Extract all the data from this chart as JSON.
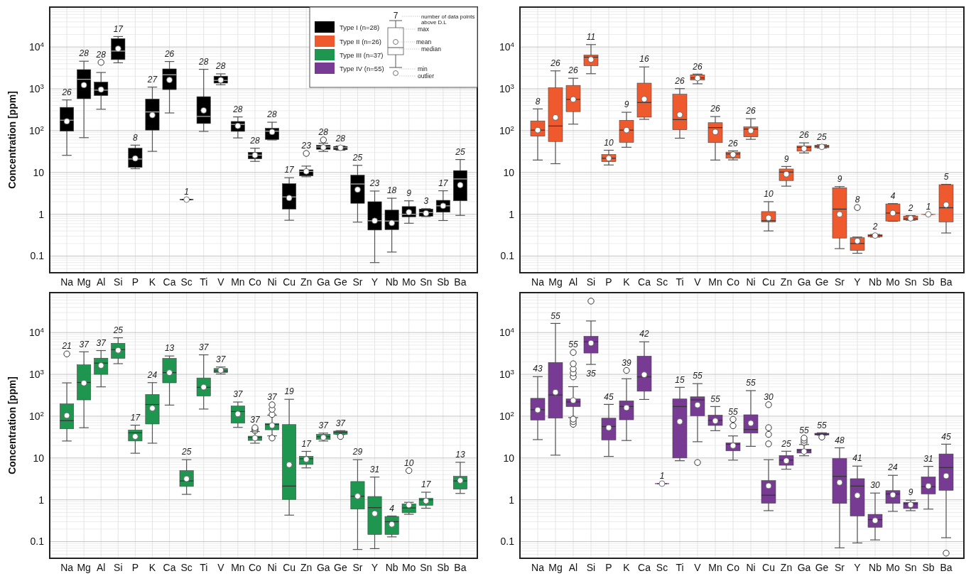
{
  "chart_data": [
    {
      "type": "box",
      "categories": [
        "Na",
        "Mg",
        "Al",
        "Si",
        "P",
        "K",
        "Ca",
        "Sc",
        "Ti",
        "V",
        "Mn",
        "Co",
        "Ni",
        "Cu",
        "Zn",
        "Ga",
        "Ge",
        "Sr",
        "Y",
        "Nb",
        "Mo",
        "Sn",
        "Sb",
        "Ba"
      ],
      "ylabel": "Concentration [ppm]",
      "log": true,
      "ylim": [
        0.04,
        90000
      ],
      "yticks": [
        {
          "value": 0.05,
          "label": null
        },
        {
          "value": 0.06,
          "label": null
        },
        {
          "value": 0.07,
          "label": null
        },
        {
          "value": 0.08,
          "label": null
        },
        {
          "value": 0.09,
          "label": null
        },
        0.1,
        {
          "value": 0.2,
          "label": null
        },
        {
          "value": 0.3,
          "label": null
        },
        {
          "value": 0.4,
          "label": null
        },
        {
          "value": 0.5,
          "label": null
        },
        {
          "value": 0.6,
          "label": null
        },
        {
          "value": 0.7,
          "label": null
        },
        {
          "value": 0.8,
          "label": null
        },
        {
          "value": 0.9,
          "label": null
        },
        1,
        {
          "value": 2,
          "label": null
        },
        {
          "value": 3,
          "label": null
        },
        {
          "value": 4,
          "label": null
        },
        {
          "value": 5,
          "label": null
        },
        {
          "value": 6,
          "label": null
        },
        {
          "value": 7,
          "label": null
        },
        {
          "value": 8,
          "label": null
        },
        {
          "value": 9,
          "label": null
        },
        10,
        {
          "value": 20,
          "label": null
        },
        {
          "value": 30,
          "label": null
        },
        {
          "value": 40,
          "label": null
        },
        {
          "value": 50,
          "label": null
        },
        {
          "value": 60,
          "label": null
        },
        {
          "value": 70,
          "label": null
        },
        {
          "value": 80,
          "label": null
        },
        {
          "value": 90,
          "label": null
        },
        {
          "value": 100,
          "label": "10$^{2}$"
        },
        {
          "value": 200,
          "label": null
        },
        {
          "value": 300,
          "label": null
        },
        {
          "value": 400,
          "label": null
        },
        {
          "value": 500,
          "label": null
        },
        {
          "value": 600,
          "label": null
        },
        {
          "value": 700,
          "label": null
        },
        {
          "value": 800,
          "label": null
        },
        {
          "value": 900,
          "label": null
        },
        {
          "value": 1000,
          "label": "10$^{3}$"
        },
        {
          "value": 2000,
          "label": null
        },
        {
          "value": 3000,
          "label": null
        },
        {
          "value": 4000,
          "label": null
        },
        {
          "value": 5000,
          "label": null
        },
        {
          "value": 6000,
          "label": null
        },
        {
          "value": 7000,
          "label": null
        },
        {
          "value": 8000,
          "label": null
        },
        {
          "value": 9000,
          "label": null
        },
        {
          "value": 10000,
          "label": "10$^{4}$"
        },
        {
          "value": 20000,
          "label": null
        },
        {
          "value": 30000,
          "label": null
        },
        {
          "value": 40000,
          "label": null
        },
        {
          "value": 50000,
          "label": null
        },
        {
          "value": 60000,
          "label": null
        },
        {
          "value": 70000,
          "label": null
        },
        {
          "value": 80000,
          "label": null
        },
        {
          "value": 90000,
          "label": null
        }
      ],
      "grid": true,
      "legend": "top right",
      "series": [
        {
          "name": "Type I (n=28)",
          "color": "#000000",
          "boxes": [
            {
              "low": 25.7,
              "q1": 97,
              "median": 178,
              "q3": 361,
              "high": 543,
              "mean": 167
            },
            {
              "low": 68,
              "q1": 580,
              "median": 1690,
              "q3": 2880,
              "high": 4570,
              "mean": 1230
            },
            {
              "low": 325,
              "q1": 690,
              "median": 930,
              "q3": 1450,
              "high": 2460,
              "mean": 960,
              "outliers": [
                4290
              ]
            },
            {
              "low": 4200,
              "q1": 5000,
              "median": 8000,
              "q3": 15900,
              "high": 17800,
              "mean": 9100
            },
            {
              "low": 12.3,
              "q1": 13.2,
              "median": 21,
              "q3": 38,
              "high": 45,
              "mean": 21.7
            },
            {
              "low": 32,
              "q1": 103,
              "median": 280,
              "q3": 570,
              "high": 1100,
              "mean": 235
            },
            {
              "low": 265,
              "q1": 960,
              "median": 2170,
              "q3": 3000,
              "high": 4500,
              "mean": 1630
            },
            {
              "low": 2.25,
              "q1": 2.25,
              "median": 2.25,
              "q3": 2.25,
              "high": 2.25,
              "mean": 2.25
            },
            {
              "low": 96,
              "q1": 148,
              "median": 219,
              "q3": 650,
              "high": 2930,
              "mean": 305
            },
            {
              "low": 1250,
              "q1": 1370,
              "median": 1590,
              "q3": 2010,
              "high": 2280,
              "mean": 1620
            },
            {
              "low": 67,
              "q1": 96,
              "median": 141,
              "q3": 166,
              "high": 213,
              "mean": 130
            },
            {
              "low": 18.4,
              "q1": 21.2,
              "median": 26,
              "q3": 30.3,
              "high": 38,
              "mean": 26
            },
            {
              "low": 60,
              "q1": 61.5,
              "median": 97,
              "q3": 114,
              "high": 159,
              "mean": 93
            },
            {
              "low": 0.72,
              "q1": 1.33,
              "median": 2.6,
              "q3": 5.4,
              "high": 7.5,
              "mean": 2.45
            },
            {
              "low": 7.9,
              "q1": 8.3,
              "median": 10.6,
              "q3": 11.6,
              "high": 14.2,
              "mean": 10.6,
              "outliers": [
                28.5
              ]
            },
            {
              "low": 31.8,
              "q1": 35.8,
              "median": 40.8,
              "q3": 44.5,
              "high": 50,
              "mean": 39.7,
              "outliers": [
                60
              ]
            },
            {
              "low": 34,
              "q1": 35,
              "median": 39,
              "q3": 42,
              "high": 43,
              "mean": 39
            },
            {
              "low": 0.65,
              "q1": 1.83,
              "median": 5.3,
              "q3": 8.6,
              "high": 14.8,
              "mean": 3.9
            },
            {
              "low": 0.07,
              "q1": 0.42,
              "median": 0.7,
              "q3": 2,
              "high": 3.6,
              "mean": 0.7
            },
            {
              "low": 0.125,
              "q1": 0.43,
              "median": 0.69,
              "q3": 1.26,
              "high": 2.42,
              "mean": 0.62
            },
            {
              "low": 0.61,
              "q1": 0.87,
              "median": 1,
              "q3": 1.53,
              "high": 2.1,
              "mean": 1.12
            },
            {
              "low": 0.88,
              "q1": 0.9,
              "median": 1.1,
              "q3": 1.34,
              "high": 1.36,
              "mean": 1.06
            },
            {
              "low": 0.71,
              "q1": 1.12,
              "median": 1.59,
              "q3": 2.16,
              "high": 3.65,
              "mean": 1.59
            },
            {
              "low": 0.94,
              "q1": 2.1,
              "median": 7,
              "q3": 11.1,
              "high": 20.4,
              "mean": 5
            }
          ],
          "value_labels": [
            "26",
            "28",
            "28",
            "17",
            "8",
            "27",
            "26",
            "1",
            "28",
            "28",
            "28",
            "28",
            "28",
            "17",
            "23",
            "28",
            "28",
            "25",
            "23",
            "18",
            "9",
            "3",
            "17",
            "25"
          ]
        }
      ],
      "annotations": [
        "7",
        "number of data points above D.L",
        "max",
        "mean",
        "median",
        "min",
        "outlier"
      ]
    },
    {
      "type": "box",
      "categories": [
        "Na",
        "Mg",
        "Al",
        "Si",
        "P",
        "K",
        "Ca",
        "Sc",
        "Ti",
        "V",
        "Mn",
        "Co",
        "Ni",
        "Cu",
        "Zn",
        "Ga",
        "Ge",
        "Sr",
        "Y",
        "Nb",
        "Mo",
        "Sn",
        "Sb",
        "Ba"
      ],
      "log": true,
      "ylim": [
        0.04,
        90000
      ],
      "yticks": [
        {
          "value": 0.05,
          "label": null
        },
        {
          "value": 0.06,
          "label": null
        },
        {
          "value": 0.07,
          "label": null
        },
        {
          "value": 0.08,
          "label": null
        },
        {
          "value": 0.09,
          "label": null
        },
        0.1,
        {
          "value": 0.2,
          "label": null
        },
        {
          "value": 0.3,
          "label": null
        },
        {
          "value": 0.4,
          "label": null
        },
        {
          "value": 0.5,
          "label": null
        },
        {
          "value": 0.6,
          "label": null
        },
        {
          "value": 0.7,
          "label": null
        },
        {
          "value": 0.8,
          "label": null
        },
        {
          "value": 0.9,
          "label": null
        },
        1,
        {
          "value": 2,
          "label": null
        },
        {
          "value": 3,
          "label": null
        },
        {
          "value": 4,
          "label": null
        },
        {
          "value": 5,
          "label": null
        },
        {
          "value": 6,
          "label": null
        },
        {
          "value": 7,
          "label": null
        },
        {
          "value": 8,
          "label": null
        },
        {
          "value": 9,
          "label": null
        },
        10,
        {
          "value": 20,
          "label": null
        },
        {
          "value": 30,
          "label": null
        },
        {
          "value": 40,
          "label": null
        },
        {
          "value": 50,
          "label": null
        },
        {
          "value": 60,
          "label": null
        },
        {
          "value": 70,
          "label": null
        },
        {
          "value": 80,
          "label": null
        },
        {
          "value": 90,
          "label": null
        },
        {
          "value": 100,
          "label": "10$^{2}$"
        },
        {
          "value": 200,
          "label": null
        },
        {
          "value": 300,
          "label": null
        },
        {
          "value": 400,
          "label": null
        },
        {
          "value": 500,
          "label": null
        },
        {
          "value": 600,
          "label": null
        },
        {
          "value": 700,
          "label": null
        },
        {
          "value": 800,
          "label": null
        },
        {
          "value": 900,
          "label": null
        },
        {
          "value": 1000,
          "label": "10$^{3}$"
        },
        {
          "value": 2000,
          "label": null
        },
        {
          "value": 3000,
          "label": null
        },
        {
          "value": 4000,
          "label": null
        },
        {
          "value": 5000,
          "label": null
        },
        {
          "value": 6000,
          "label": null
        },
        {
          "value": 7000,
          "label": null
        },
        {
          "value": 8000,
          "label": null
        },
        {
          "value": 9000,
          "label": null
        },
        {
          "value": 10000,
          "label": "10$^{4}$"
        },
        {
          "value": 20000,
          "label": null
        },
        {
          "value": 30000,
          "label": null
        },
        {
          "value": 40000,
          "label": null
        },
        {
          "value": 50000,
          "label": null
        },
        {
          "value": 60000,
          "label": null
        },
        {
          "value": 70000,
          "label": null
        },
        {
          "value": 80000,
          "label": null
        },
        {
          "value": 90000,
          "label": null
        }
      ],
      "grid": true,
      "series": [
        {
          "name": "Type II (n=26)",
          "color": "#ee5a2e",
          "boxes": [
            {
              "low": 19.8,
              "q1": 74,
              "median": 103,
              "q3": 171,
              "high": 331,
              "mean": 103
            },
            {
              "low": 16.2,
              "q1": 55,
              "median": 129,
              "q3": 1060,
              "high": 2690,
              "mean": 207
            },
            {
              "low": 143,
              "q1": 285,
              "median": 560,
              "q3": 1210,
              "high": 1790,
              "mean": 560
            },
            {
              "low": 2300,
              "q1": 3570,
              "median": 5740,
              "q3": 6450,
              "high": 11400,
              "mean": 5020
            },
            {
              "low": 15.1,
              "q1": 18.2,
              "median": 21.9,
              "q3": 26.9,
              "high": 34,
              "mean": 21.9
            },
            {
              "low": 40,
              "q1": 52.6,
              "median": 103,
              "q3": 177,
              "high": 275,
              "mean": 103
            },
            {
              "low": 186,
              "q1": 210,
              "median": 472,
              "q3": 1370,
              "high": 3340,
              "mean": 568
            },
            null,
            {
              "low": 66,
              "q1": 105,
              "median": 184,
              "q3": 743,
              "high": 1010,
              "mean": 240
            },
            {
              "low": 1320,
              "q1": 1620,
              "median": 1820,
              "q3": 2150,
              "high": 2250,
              "mean": 1800
            },
            {
              "low": 19.8,
              "q1": 51.8,
              "median": 118,
              "q3": 155,
              "high": 217,
              "mean": 93
            },
            {
              "low": 20,
              "q1": 21.9,
              "median": 27.7,
              "q3": 30.7,
              "high": 32.8,
              "mean": 26.8
            },
            {
              "low": 62,
              "q1": 71,
              "median": 109,
              "q3": 123,
              "high": 193,
              "mean": 100
            },
            {
              "low": 0.4,
              "q1": 0.66,
              "median": 0.7,
              "q3": 1.16,
              "high": 2,
              "mean": 0.82
            },
            {
              "low": 4.7,
              "q1": 6.4,
              "median": 10.2,
              "q3": 12.1,
              "high": 13.9,
              "mean": 9.1
            },
            {
              "low": 29.2,
              "q1": 32.3,
              "median": 40,
              "q3": 43,
              "high": 51,
              "mean": 37
            },
            {
              "low": 38.5,
              "q1": 39,
              "median": 42,
              "q3": 45,
              "high": 46,
              "mean": 41
            },
            {
              "low": 0.151,
              "q1": 0.27,
              "median": 1.33,
              "q3": 4.3,
              "high": 4.6,
              "mean": 1
            },
            {
              "low": 0.117,
              "q1": 0.137,
              "median": 0.2,
              "q3": 0.275,
              "high": 0.285,
              "mean": 0.23,
              "outliers": [
                1.45
              ]
            },
            {
              "low": 0.285,
              "q1": 0.29,
              "median": 0.31,
              "q3": 0.325,
              "high": 0.33,
              "mean": 0.31
            },
            {
              "low": 0.68,
              "q1": 0.69,
              "median": 1.07,
              "q3": 1.77,
              "high": 1.8,
              "mean": 1.07
            },
            {
              "low": 0.72,
              "q1": 0.73,
              "median": 0.78,
              "q3": 0.91,
              "high": 0.93,
              "mean": 0.8
            },
            {
              "low": 1,
              "q1": 1,
              "median": 1,
              "q3": 1,
              "high": 1,
              "mean": 1
            },
            {
              "low": 0.357,
              "q1": 0.66,
              "median": 1.43,
              "q3": 5.1,
              "high": 5.2,
              "mean": 1.69
            }
          ],
          "value_labels": [
            "8",
            "26",
            "26",
            "11",
            "10",
            "9",
            "16",
            null,
            "26",
            "26",
            "26",
            "26",
            "26",
            "10",
            "9",
            "26",
            "25",
            "9",
            "8",
            "2",
            "4",
            "2",
            "1",
            "5"
          ]
        }
      ]
    },
    {
      "type": "box",
      "categories": [
        "Na",
        "Mg",
        "Al",
        "Si",
        "P",
        "K",
        "Ca",
        "Sc",
        "Ti",
        "V",
        "Mn",
        "Co",
        "Ni",
        "Cu",
        "Zn",
        "Ga",
        "Ge",
        "Sr",
        "Y",
        "Nb",
        "Mo",
        "Sn",
        "Sb",
        "Ba"
      ],
      "ylabel": "Concentration [ppm]",
      "log": true,
      "ylim": [
        0.04,
        90000
      ],
      "yticks": [
        {
          "value": 0.05,
          "label": null
        },
        {
          "value": 0.06,
          "label": null
        },
        {
          "value": 0.07,
          "label": null
        },
        {
          "value": 0.08,
          "label": null
        },
        {
          "value": 0.09,
          "label": null
        },
        0.1,
        {
          "value": 0.2,
          "label": null
        },
        {
          "value": 0.3,
          "label": null
        },
        {
          "value": 0.4,
          "label": null
        },
        {
          "value": 0.5,
          "label": null
        },
        {
          "value": 0.6,
          "label": null
        },
        {
          "value": 0.7,
          "label": null
        },
        {
          "value": 0.8,
          "label": null
        },
        {
          "value": 0.9,
          "label": null
        },
        1,
        {
          "value": 2,
          "label": null
        },
        {
          "value": 3,
          "label": null
        },
        {
          "value": 4,
          "label": null
        },
        {
          "value": 5,
          "label": null
        },
        {
          "value": 6,
          "label": null
        },
        {
          "value": 7,
          "label": null
        },
        {
          "value": 8,
          "label": null
        },
        {
          "value": 9,
          "label": null
        },
        10,
        {
          "value": 20,
          "label": null
        },
        {
          "value": 30,
          "label": null
        },
        {
          "value": 40,
          "label": null
        },
        {
          "value": 50,
          "label": null
        },
        {
          "value": 60,
          "label": null
        },
        {
          "value": 70,
          "label": null
        },
        {
          "value": 80,
          "label": null
        },
        {
          "value": 90,
          "label": null
        },
        {
          "value": 100,
          "label": "10$^{2}$"
        },
        {
          "value": 200,
          "label": null
        },
        {
          "value": 300,
          "label": null
        },
        {
          "value": 400,
          "label": null
        },
        {
          "value": 500,
          "label": null
        },
        {
          "value": 600,
          "label": null
        },
        {
          "value": 700,
          "label": null
        },
        {
          "value": 800,
          "label": null
        },
        {
          "value": 900,
          "label": null
        },
        {
          "value": 1000,
          "label": "10$^{3}$"
        },
        {
          "value": 2000,
          "label": null
        },
        {
          "value": 3000,
          "label": null
        },
        {
          "value": 4000,
          "label": null
        },
        {
          "value": 5000,
          "label": null
        },
        {
          "value": 6000,
          "label": null
        },
        {
          "value": 7000,
          "label": null
        },
        {
          "value": 8000,
          "label": null
        },
        {
          "value": 9000,
          "label": null
        },
        {
          "value": 10000,
          "label": "10$^{4}$"
        },
        {
          "value": 20000,
          "label": null
        },
        {
          "value": 30000,
          "label": null
        },
        {
          "value": 40000,
          "label": null
        },
        {
          "value": 50000,
          "label": null
        },
        {
          "value": 60000,
          "label": null
        },
        {
          "value": 70000,
          "label": null
        },
        {
          "value": 80000,
          "label": null
        },
        {
          "value": 90000,
          "label": null
        }
      ],
      "grid": true,
      "series": [
        {
          "name": "Type III (n=37)",
          "color": "#1e9650",
          "boxes": [
            {
              "low": 25.5,
              "q1": 49.8,
              "median": 78,
              "q3": 197,
              "high": 626,
              "mean": 104,
              "outliers": [
                3080
              ]
            },
            {
              "low": 53,
              "q1": 245,
              "median": 640,
              "q3": 1690,
              "high": 3460,
              "mean": 620
            },
            {
              "low": 503,
              "q1": 1000,
              "median": 1860,
              "q3": 2440,
              "high": 3710,
              "mean": 1630
            },
            {
              "low": 1800,
              "q1": 2410,
              "median": 3900,
              "q3": 5540,
              "high": 7500,
              "mean": 3770
            },
            {
              "low": 13,
              "q1": 25.5,
              "median": 40,
              "q3": 46.5,
              "high": 61,
              "mean": 32.7
            },
            {
              "low": 22.6,
              "q1": 65,
              "median": 190,
              "q3": 331,
              "high": 634,
              "mean": 155
            },
            {
              "low": 184,
              "q1": 627,
              "median": 1100,
              "q3": 2410,
              "high": 2750,
              "mean": 1100
            },
            {
              "low": 1.35,
              "q1": 2.09,
              "median": 2.83,
              "q3": 5,
              "high": 9.1,
              "mean": 3.18
            },
            {
              "low": 148,
              "q1": 304,
              "median": 490,
              "q3": 820,
              "high": 2930,
              "mean": 495
            },
            {
              "low": 1020,
              "q1": 1100,
              "median": 1200,
              "q3": 1380,
              "high": 1500,
              "mean": 1260
            },
            {
              "low": 54,
              "q1": 68,
              "median": 129,
              "q3": 175,
              "high": 218,
              "mean": 113
            },
            {
              "low": 22.6,
              "q1": 26.3,
              "median": 31,
              "q3": 33.3,
              "high": 43,
              "mean": 30,
              "outliers": [
                45,
                49,
                53
              ]
            },
            {
              "low": 33.8,
              "q1": 47.3,
              "median": 63,
              "q3": 67,
              "high": 106,
              "mean": 60,
              "outliers": [
                30,
                110,
                146,
                187
              ]
            },
            {
              "low": 0.43,
              "q1": 1.02,
              "median": 2.13,
              "q3": 63,
              "high": 253,
              "mean": 6.9
            },
            {
              "low": 5.8,
              "q1": 7,
              "median": 9.6,
              "q3": 11,
              "high": 14.4,
              "mean": 9.3
            },
            {
              "low": 25.5,
              "q1": 27.7,
              "median": 32.2,
              "q3": 36.8,
              "high": 39.4,
              "mean": 31
            },
            {
              "low": 36.5,
              "q1": 37,
              "median": 41,
              "q3": 44,
              "high": 45,
              "outliers": [
                32.7
              ]
            },
            {
              "low": 0.065,
              "q1": 0.6,
              "median": 1.22,
              "q3": 2.74,
              "high": 9.1,
              "mean": 1.22
            },
            {
              "low": 0.068,
              "q1": 0.148,
              "median": 0.65,
              "q3": 1.2,
              "high": 3.5,
              "mean": 0.47
            },
            {
              "low": 0.13,
              "q1": 0.148,
              "median": 0.3,
              "q3": 0.4,
              "high": 0.41,
              "mean": 0.26
            },
            {
              "low": 0.45,
              "q1": 0.49,
              "median": 0.64,
              "q3": 0.8,
              "high": 0.87,
              "mean": 0.75,
              "outliers": [
                5
              ]
            },
            {
              "low": 0.63,
              "q1": 0.74,
              "median": 1,
              "q3": 1.09,
              "high": 1.52,
              "mean": 0.94
            },
            null,
            {
              "low": 1.42,
              "q1": 1.8,
              "median": 2.83,
              "q3": 3.64,
              "high": 7.9,
              "mean": 2.9
            }
          ],
          "value_labels": [
            "21",
            "37",
            "37",
            "25",
            "17",
            "24",
            "13",
            "25",
            "37",
            "37",
            "37",
            "37",
            "37",
            "19",
            "17",
            "37",
            "37",
            "29",
            "31",
            "4",
            "10",
            "17",
            null,
            "13"
          ]
        }
      ]
    },
    {
      "type": "box",
      "categories": [
        "Na",
        "Mg",
        "Al",
        "Si",
        "P",
        "K",
        "Ca",
        "Sc",
        "Ti",
        "V",
        "Mn",
        "Co",
        "Ni",
        "Cu",
        "Zn",
        "Ga",
        "Ge",
        "Sr",
        "Y",
        "Nb",
        "Mo",
        "Sn",
        "Sb",
        "Ba"
      ],
      "log": true,
      "ylim": [
        0.04,
        90000
      ],
      "yticks": [
        {
          "value": 0.05,
          "label": null
        },
        {
          "value": 0.06,
          "label": null
        },
        {
          "value": 0.07,
          "label": null
        },
        {
          "value": 0.08,
          "label": null
        },
        {
          "value": 0.09,
          "label": null
        },
        0.1,
        {
          "value": 0.2,
          "label": null
        },
        {
          "value": 0.3,
          "label": null
        },
        {
          "value": 0.4,
          "label": null
        },
        {
          "value": 0.5,
          "label": null
        },
        {
          "value": 0.6,
          "label": null
        },
        {
          "value": 0.7,
          "label": null
        },
        {
          "value": 0.8,
          "label": null
        },
        {
          "value": 0.9,
          "label": null
        },
        1,
        {
          "value": 2,
          "label": null
        },
        {
          "value": 3,
          "label": null
        },
        {
          "value": 4,
          "label": null
        },
        {
          "value": 5,
          "label": null
        },
        {
          "value": 6,
          "label": null
        },
        {
          "value": 7,
          "label": null
        },
        {
          "value": 8,
          "label": null
        },
        {
          "value": 9,
          "label": null
        },
        10,
        {
          "value": 20,
          "label": null
        },
        {
          "value": 30,
          "label": null
        },
        {
          "value": 40,
          "label": null
        },
        {
          "value": 50,
          "label": null
        },
        {
          "value": 60,
          "label": null
        },
        {
          "value": 70,
          "label": null
        },
        {
          "value": 80,
          "label": null
        },
        {
          "value": 90,
          "label": null
        },
        {
          "value": 100,
          "label": "10$^{2}$"
        },
        {
          "value": 200,
          "label": null
        },
        {
          "value": 300,
          "label": null
        },
        {
          "value": 400,
          "label": null
        },
        {
          "value": 500,
          "label": null
        },
        {
          "value": 600,
          "label": null
        },
        {
          "value": 700,
          "label": null
        },
        {
          "value": 800,
          "label": null
        },
        {
          "value": 900,
          "label": null
        },
        {
          "value": 1000,
          "label": "10$^{3}$"
        },
        {
          "value": 2000,
          "label": null
        },
        {
          "value": 3000,
          "label": null
        },
        {
          "value": 4000,
          "label": null
        },
        {
          "value": 5000,
          "label": null
        },
        {
          "value": 6000,
          "label": null
        },
        {
          "value": 7000,
          "label": null
        },
        {
          "value": 8000,
          "label": null
        },
        {
          "value": 9000,
          "label": null
        },
        {
          "value": 10000,
          "label": "10$^{4}$"
        },
        {
          "value": 20000,
          "label": null
        },
        {
          "value": 30000,
          "label": null
        },
        {
          "value": 40000,
          "label": null
        },
        {
          "value": 50000,
          "label": null
        },
        {
          "value": 60000,
          "label": null
        },
        {
          "value": 70000,
          "label": null
        },
        {
          "value": 80000,
          "label": null
        },
        {
          "value": 90000,
          "label": null
        }
      ],
      "grid": true,
      "series": [
        {
          "name": "Type IV (n=55)",
          "color": "#773b93",
          "boxes": [
            {
              "low": 27.5,
              "q1": 81,
              "median": 143,
              "q3": 267,
              "high": 883,
              "mean": 141
            },
            {
              "low": 11.7,
              "q1": 89.5,
              "median": 321,
              "q3": 1920,
              "high": 16500,
              "mean": 374
            },
            {
              "low": 92.5,
              "q1": 170,
              "median": 219,
              "q3": 258,
              "high": 507,
              "mean": 238,
              "outliers": [
                64,
                74,
                85,
                870,
                1080,
                1350,
                1790,
                3340
              ]
            },
            {
              "low": 1730,
              "q1": 3230,
              "median": 6000,
              "q3": 8130,
              "high": 18900,
              "mean": 5600,
              "outliers": [
                56400
              ]
            },
            {
              "low": 10.9,
              "q1": 27,
              "median": 56.8,
              "q3": 89.5,
              "high": 191,
              "mean": 53
            },
            {
              "low": 26.2,
              "q1": 82,
              "median": 170,
              "q3": 233,
              "high": 785,
              "mean": 159,
              "outliers": [
                1240
              ]
            },
            {
              "low": 251,
              "q1": 394,
              "median": 870,
              "q3": 2730,
              "high": 6000,
              "mean": 980
            },
            {
              "low": 2.44,
              "q1": 2.44,
              "median": 2.44,
              "q3": 2.44,
              "high": 2.44,
              "mean": 2.44
            },
            {
              "low": 8.6,
              "q1": 10,
              "median": 170,
              "q3": 258,
              "high": 490,
              "mean": 74.5
            },
            {
              "low": 24.5,
              "q1": 102,
              "median": 245,
              "q3": 290,
              "high": 600,
              "mean": 185,
              "outliers": [
                7.8
              ]
            },
            {
              "low": 45,
              "q1": 60,
              "median": 79.7,
              "q3": 106,
              "high": 170,
              "mean": 77
            },
            {
              "low": 8.9,
              "q1": 14.8,
              "median": 21.4,
              "q3": 23,
              "high": 33.7,
              "mean": 19.7,
              "outliers": [
                59,
                84
              ]
            },
            {
              "low": 19,
              "q1": 39.3,
              "median": 48,
              "q3": 108,
              "high": 408,
              "mean": 68
            },
            {
              "low": 0.55,
              "q1": 0.83,
              "median": 1.29,
              "q3": 2.89,
              "high": 9.1,
              "mean": 2.17,
              "outliers": [
                21.8,
                36.7,
                53,
                188
              ]
            },
            {
              "low": 5.4,
              "q1": 6.7,
              "median": 8.9,
              "q3": 11.5,
              "high": 14.5,
              "mean": 8.6
            },
            {
              "low": 11.3,
              "q1": 13.1,
              "median": 15.3,
              "q3": 16.3,
              "high": 21,
              "mean": 14.3,
              "outliers": [
                23.7,
                26.6,
                30
              ]
            },
            {
              "low": 35,
              "q1": 35.5,
              "median": 37,
              "q3": 39,
              "high": 40,
              "outliers": [
                31.6
              ]
            },
            {
              "low": 0.071,
              "q1": 0.82,
              "median": 3.65,
              "q3": 9.7,
              "high": 17.5,
              "mean": 2.6
            },
            {
              "low": 0.093,
              "q1": 0.41,
              "median": 2.13,
              "q3": 3.2,
              "high": 6.4,
              "mean": 1.27
            },
            {
              "low": 0.11,
              "q1": 0.22,
              "median": 0.335,
              "q3": 0.45,
              "high": 1.45,
              "mean": 0.32
            },
            {
              "low": 0.53,
              "q1": 0.82,
              "median": 1.38,
              "q3": 1.66,
              "high": 3.85,
              "mean": 1.31
            },
            {
              "low": 0.55,
              "q1": 0.62,
              "median": 0.8,
              "q3": 0.87,
              "high": 0.98,
              "mean": 0.76
            },
            {
              "low": 0.6,
              "q1": 1.38,
              "median": 2.06,
              "q3": 3.53,
              "high": 6.3,
              "mean": 2.13
            },
            {
              "low": 0.124,
              "q1": 1.69,
              "median": 5.9,
              "q3": 12.5,
              "high": 21.4,
              "mean": 3.72,
              "outliers": [
                0.053
              ]
            }
          ],
          "value_labels": [
            "43",
            "55",
            "55",
            "35",
            "45",
            "39",
            "42",
            "1",
            "15",
            "55",
            "55",
            "55",
            "55",
            "30",
            "25",
            "55",
            "55",
            "48",
            "41",
            "30",
            "24",
            "9",
            "31",
            "45"
          ]
        }
      ]
    }
  ]
}
